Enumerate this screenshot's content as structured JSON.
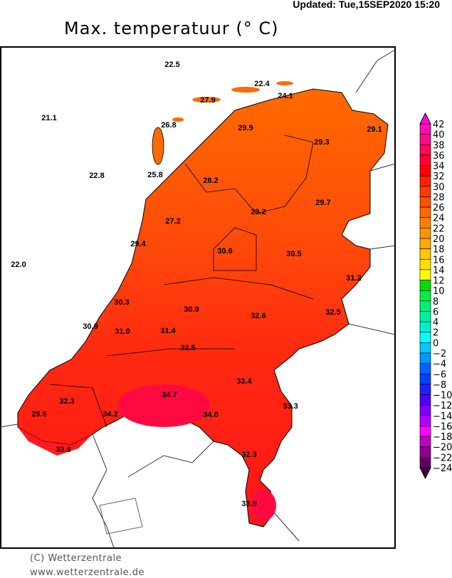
{
  "header": {
    "updated": "Updated: Tue,15SEP2020  15:20",
    "title": "Max. temperatuur (° C)"
  },
  "footer": {
    "copyright": "(C) Wetterzentrale",
    "url": "www.wetterzentrale.de"
  },
  "map": {
    "region": "Netherlands",
    "variable": "max temperature",
    "unit": "°C",
    "station_values": [
      "22.5",
      "22.4",
      "24.1",
      "27.9",
      "21.1",
      "26.8",
      "29.9",
      "29.1",
      "29.3",
      "22.8",
      "25.8",
      "28.2",
      "29.2",
      "29.7",
      "27.2",
      "29.4",
      "30.6",
      "30.5",
      "22.0",
      "31.2",
      "30.3",
      "30.9",
      "32.6",
      "32.5",
      "30.9",
      "31.0",
      "31.4",
      "32.5",
      "33.4",
      "32.3",
      "34.7",
      "33.3",
      "29.6",
      "34.2",
      "34.0",
      "33.6",
      "32.3",
      "33.9"
    ]
  },
  "legend": {
    "labels": [
      "42",
      "40",
      "38",
      "36",
      "34",
      "32",
      "30",
      "28",
      "26",
      "24",
      "22",
      "20",
      "18",
      "16",
      "14",
      "12",
      "10",
      "8",
      "6",
      "4",
      "2",
      "0",
      "−2",
      "−4",
      "−6",
      "−8",
      "−10",
      "−12",
      "−14",
      "−16",
      "−18",
      "−20",
      "−22",
      "−24"
    ],
    "colors": [
      "#ff0ab4",
      "#ff0a8c",
      "#ff0a50",
      "#ff0030",
      "#ff0000",
      "#ff2000",
      "#ff3a00",
      "#ff5000",
      "#ff6a00",
      "#ff8000",
      "#ff9600",
      "#ffaa00",
      "#ffc800",
      "#ffe000",
      "#ffff00",
      "#00e000",
      "#00f040",
      "#00f078",
      "#00f0a0",
      "#00f0d0",
      "#00ffff",
      "#00c8ff",
      "#0096ff",
      "#0064ff",
      "#0040ff",
      "#2020ff",
      "#5000ff",
      "#8000ff",
      "#b400ff",
      "#ff00ff",
      "#c000c0",
      "#900090",
      "#600060"
    ],
    "top_arrow_color": "#ff00e6",
    "bottom_arrow_color": "#400040"
  }
}
